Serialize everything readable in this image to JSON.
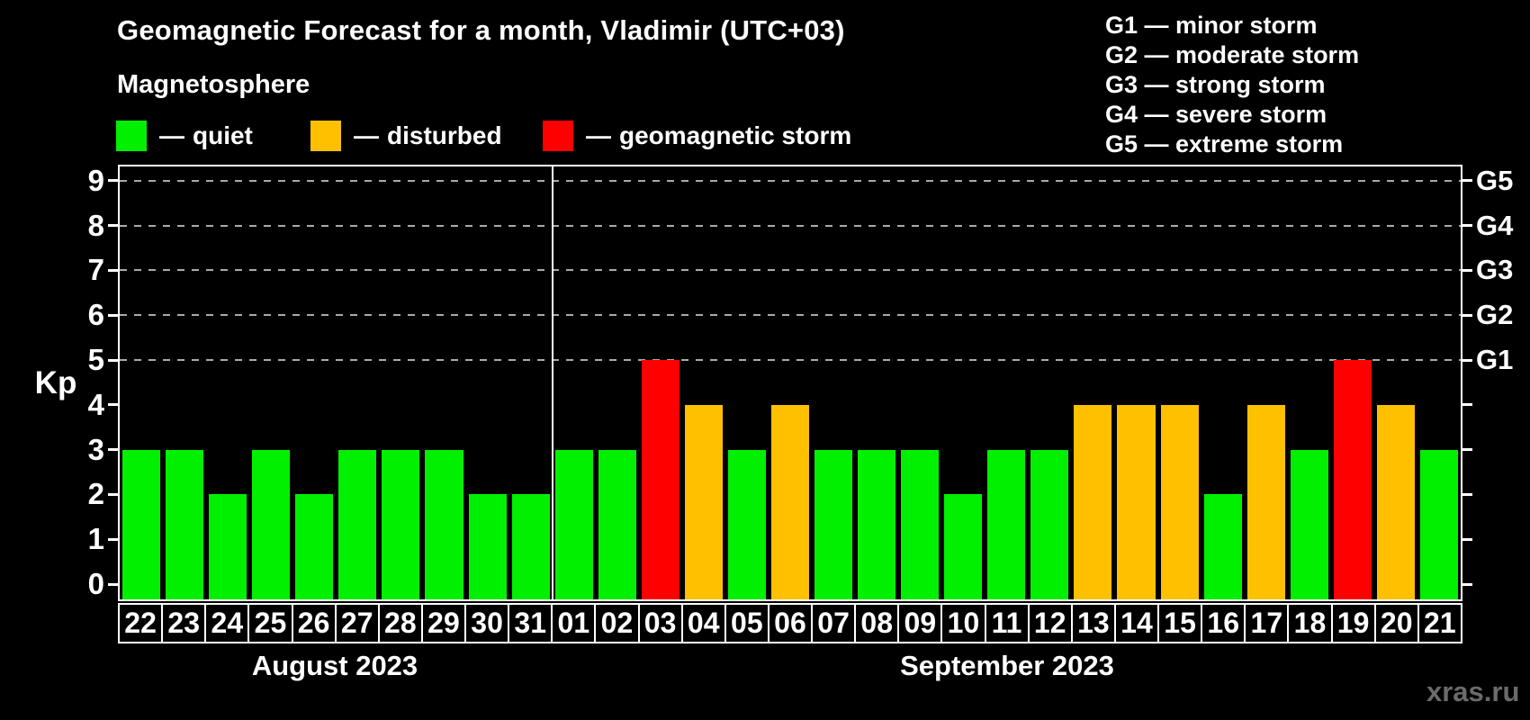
{
  "header": {
    "title": "Geomagnetic Forecast for a month, Vladimir (UTC+03)",
    "subtitle": "Magnetosphere"
  },
  "legend": {
    "dash": "—",
    "items": [
      {
        "label": "quiet",
        "color": "#00f000"
      },
      {
        "label": "disturbed",
        "color": "#ffc000"
      },
      {
        "label": "geomagnetic storm",
        "color": "#ff0000"
      }
    ]
  },
  "g_legend": {
    "lines": [
      "G1 — minor storm",
      "G2 — moderate storm",
      "G3 — strong storm",
      "G4 — severe storm",
      "G5 — extreme storm"
    ]
  },
  "watermark": "xras.ru",
  "chart_data": {
    "type": "bar",
    "title": "Geomagnetic Forecast for a month, Vladimir (UTC+03)",
    "ylabel": "Kp",
    "ylim": [
      0,
      9
    ],
    "yticks": [
      0,
      1,
      2,
      3,
      4,
      5,
      6,
      7,
      8,
      9
    ],
    "gridlines_at": [
      5,
      6,
      7,
      8,
      9
    ],
    "grid": "dashed",
    "legend_position": "top-left",
    "right_axis": [
      {
        "kp": 5,
        "label": "G1"
      },
      {
        "kp": 6,
        "label": "G2"
      },
      {
        "kp": 7,
        "label": "G3"
      },
      {
        "kp": 8,
        "label": "G4"
      },
      {
        "kp": 9,
        "label": "G5"
      }
    ],
    "status_colors": {
      "quiet": "#00f000",
      "disturbed": "#ffc000",
      "storm": "#ff0000"
    },
    "groups": [
      {
        "key": "aug",
        "label": "August 2023",
        "bars": [
          {
            "day": "22",
            "kp": 3,
            "status": "quiet"
          },
          {
            "day": "23",
            "kp": 3,
            "status": "quiet"
          },
          {
            "day": "24",
            "kp": 2,
            "status": "quiet"
          },
          {
            "day": "25",
            "kp": 3,
            "status": "quiet"
          },
          {
            "day": "26",
            "kp": 2,
            "status": "quiet"
          },
          {
            "day": "27",
            "kp": 3,
            "status": "quiet"
          },
          {
            "day": "28",
            "kp": 3,
            "status": "quiet"
          },
          {
            "day": "29",
            "kp": 3,
            "status": "quiet"
          },
          {
            "day": "30",
            "kp": 2,
            "status": "quiet"
          },
          {
            "day": "31",
            "kp": 2,
            "status": "quiet"
          }
        ]
      },
      {
        "key": "sep",
        "label": "September 2023",
        "bars": [
          {
            "day": "01",
            "kp": 3,
            "status": "quiet"
          },
          {
            "day": "02",
            "kp": 3,
            "status": "quiet"
          },
          {
            "day": "03",
            "kp": 5,
            "status": "storm"
          },
          {
            "day": "04",
            "kp": 4,
            "status": "disturbed"
          },
          {
            "day": "05",
            "kp": 3,
            "status": "quiet"
          },
          {
            "day": "06",
            "kp": 4,
            "status": "disturbed"
          },
          {
            "day": "07",
            "kp": 3,
            "status": "quiet"
          },
          {
            "day": "08",
            "kp": 3,
            "status": "quiet"
          },
          {
            "day": "09",
            "kp": 3,
            "status": "quiet"
          },
          {
            "day": "10",
            "kp": 2,
            "status": "quiet"
          },
          {
            "day": "11",
            "kp": 3,
            "status": "quiet"
          },
          {
            "day": "12",
            "kp": 3,
            "status": "quiet"
          },
          {
            "day": "13",
            "kp": 4,
            "status": "disturbed"
          },
          {
            "day": "14",
            "kp": 4,
            "status": "disturbed"
          },
          {
            "day": "15",
            "kp": 4,
            "status": "disturbed"
          },
          {
            "day": "16",
            "kp": 2,
            "status": "quiet"
          },
          {
            "day": "17",
            "kp": 4,
            "status": "disturbed"
          },
          {
            "day": "18",
            "kp": 3,
            "status": "quiet"
          },
          {
            "day": "19",
            "kp": 5,
            "status": "storm"
          },
          {
            "day": "20",
            "kp": 4,
            "status": "disturbed"
          },
          {
            "day": "21",
            "kp": 3,
            "status": "quiet"
          }
        ]
      }
    ]
  }
}
